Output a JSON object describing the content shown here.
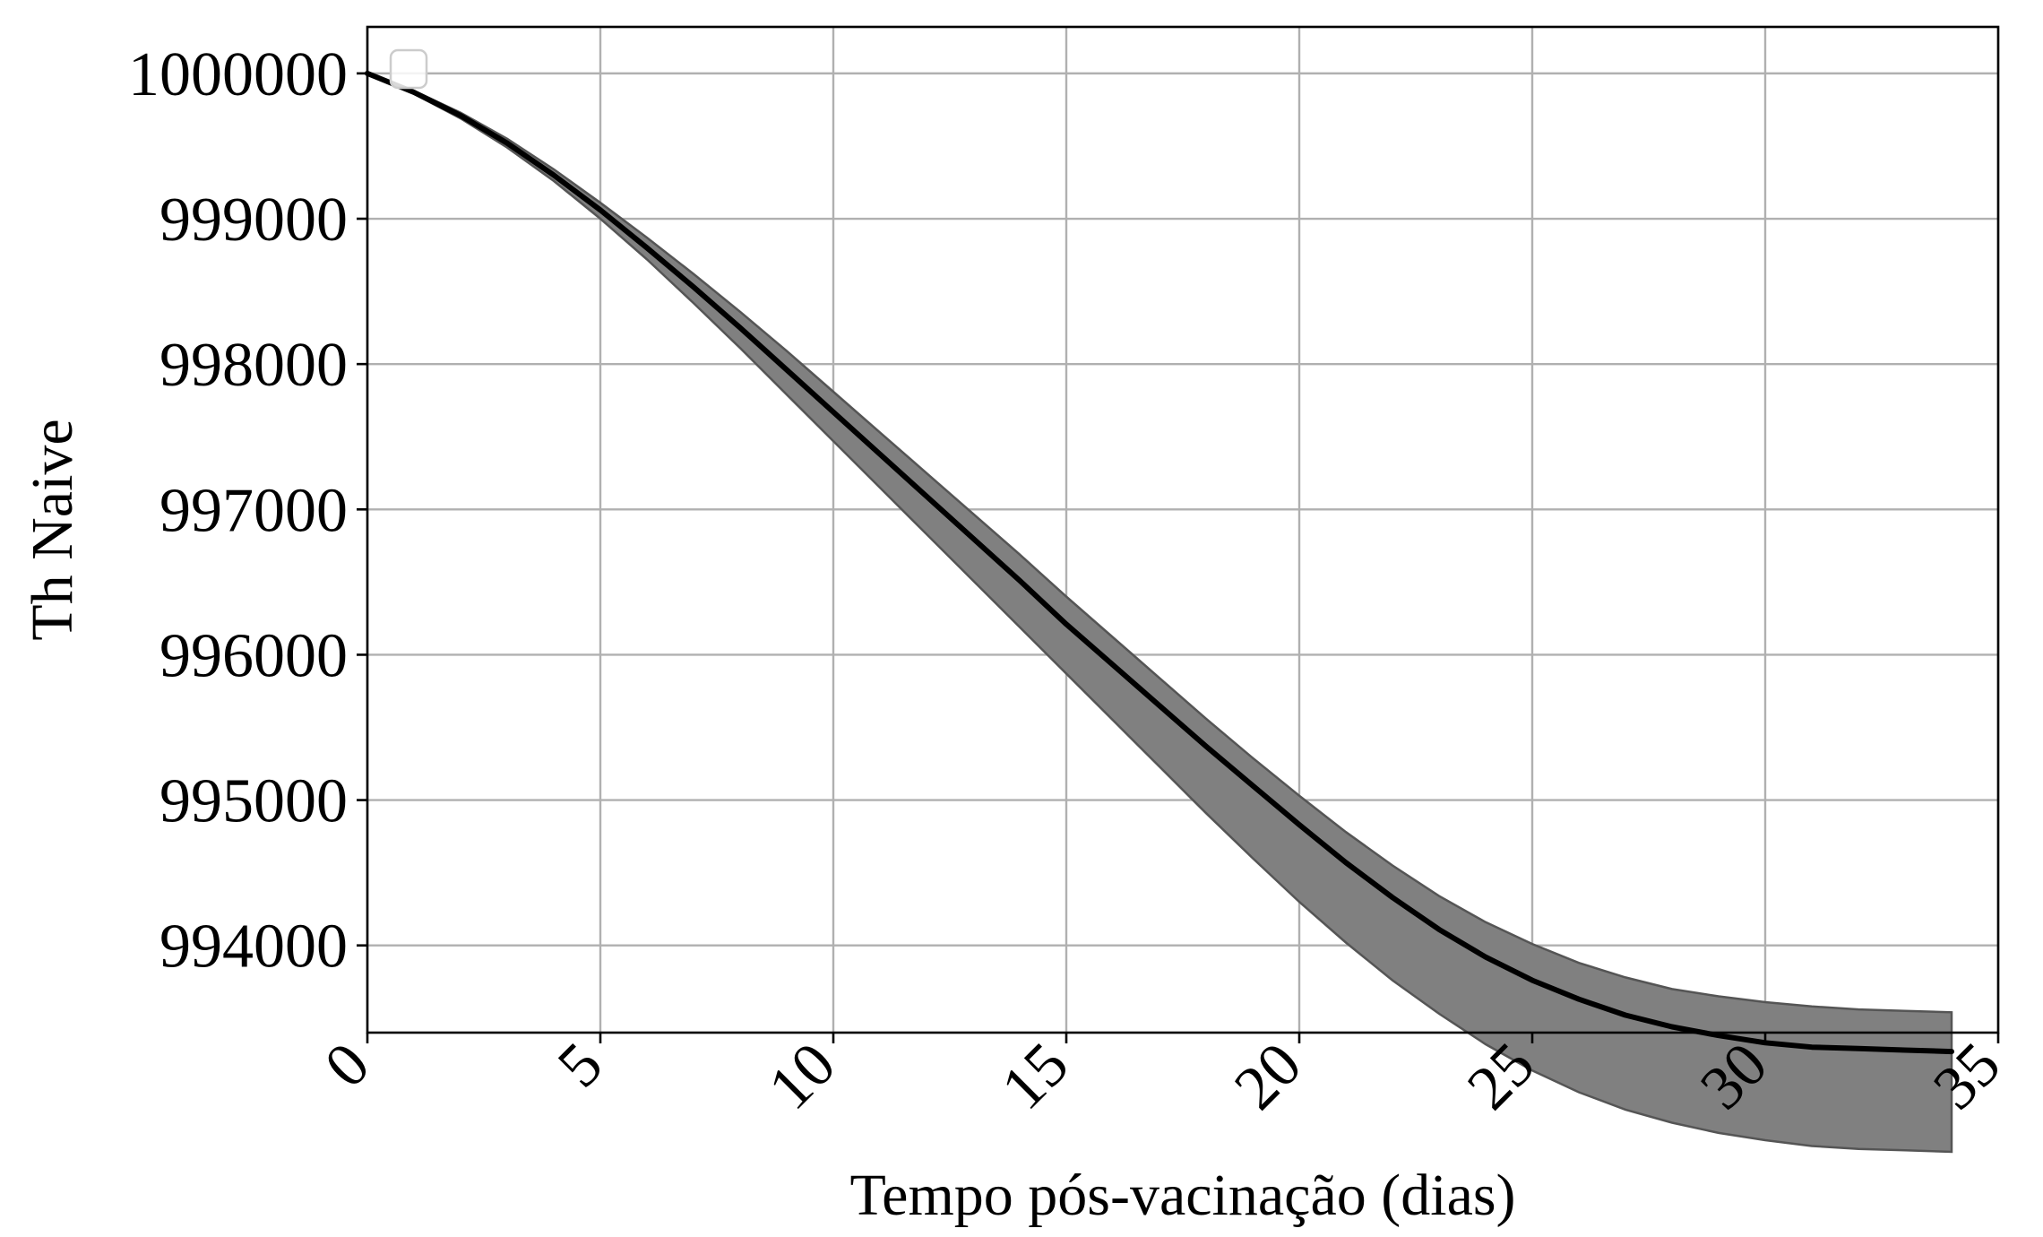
{
  "chart_data": {
    "type": "line",
    "title": "",
    "xlabel": "Tempo pós-vacinação (dias)",
    "ylabel": "Th Naive",
    "xlim": [
      0,
      35
    ],
    "ylim": [
      993400,
      1000320
    ],
    "xticks": [
      0,
      5,
      10,
      15,
      20,
      25,
      30,
      35
    ],
    "xtick_labels": [
      "0",
      "5",
      "10",
      "15",
      "20",
      "25",
      "30",
      "35"
    ],
    "yticks": [
      994000,
      995000,
      996000,
      997000,
      998000,
      999000,
      1000000
    ],
    "ytick_labels": [
      "994000",
      "995000",
      "996000",
      "997000",
      "998000",
      "999000",
      "1000000"
    ],
    "x_tick_rotation": 45,
    "grid": true,
    "legend": "top-left (empty)",
    "colors": {
      "line": "#000000",
      "band": "#808080",
      "band_edge": "#555555",
      "grid": "#b0b0b0"
    },
    "series": [
      {
        "x": [
          0,
          1,
          2,
          3,
          4,
          5,
          6,
          7,
          8,
          9,
          10,
          11,
          12,
          13,
          14,
          15,
          16,
          17,
          18,
          19,
          20,
          21,
          22,
          23,
          24,
          25,
          26,
          27,
          28,
          29,
          30,
          31,
          32,
          33,
          34
        ],
        "values": [
          1000000,
          999870,
          999710,
          999520,
          999300,
          999060,
          998800,
          998530,
          998250,
          997960,
          997670,
          997380,
          997090,
          996800,
          996510,
          996210,
          995930,
          995650,
          995370,
          995100,
          994830,
          994570,
          994330,
          994110,
          993920,
          993760,
          993630,
          993520,
          993440,
          993380,
          993330,
          993300,
          993290,
          993280,
          993270
        ],
        "lower": [
          1000000,
          999860,
          999690,
          999490,
          999260,
          999000,
          998720,
          998420,
          998110,
          997790,
          997470,
          997150,
          996830,
          996510,
          996190,
          995870,
          995550,
          995230,
          994910,
          994600,
          994300,
          994020,
          993760,
          993530,
          993320,
          993140,
          992990,
          992870,
          992780,
          992710,
          992660,
          992620,
          992600,
          992590,
          992580
        ],
        "upper": [
          1000000,
          999880,
          999730,
          999550,
          999340,
          999110,
          998870,
          998620,
          998360,
          998090,
          997810,
          997530,
          997250,
          996970,
          996690,
          996400,
          996120,
          995840,
          995560,
          995290,
          995030,
          994780,
          994550,
          994340,
          994160,
          994010,
          993880,
          993780,
          993700,
          993650,
          993610,
          993580,
          993560,
          993550,
          993540
        ]
      }
    ]
  }
}
